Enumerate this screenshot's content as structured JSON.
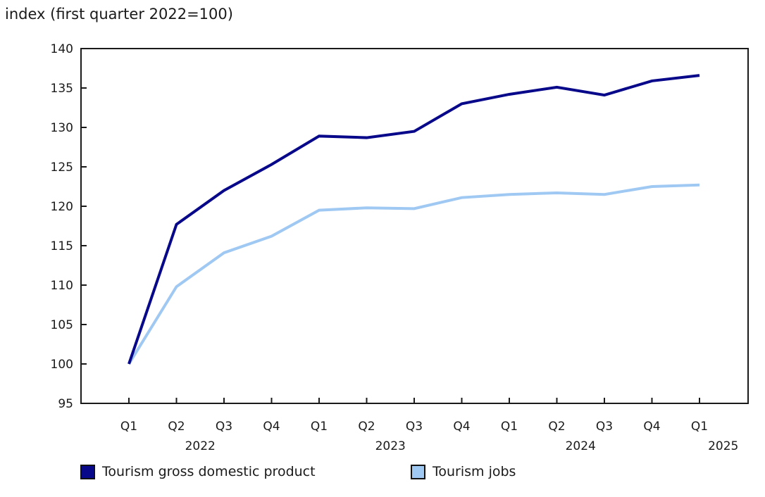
{
  "title": "index (first quarter 2022=100)",
  "chart_data": {
    "type": "line",
    "title": "index (first quarter 2022=100)",
    "categories": [
      "2022 Q1",
      "2022 Q2",
      "2022 Q3",
      "2022 Q4",
      "2023 Q1",
      "2023 Q2",
      "2023 Q3",
      "2023 Q4",
      "2024 Q1",
      "2024 Q2",
      "2024 Q3",
      "2024 Q4",
      "2025 Q1"
    ],
    "x_tick_labels": [
      "Q1",
      "Q2",
      "Q3",
      "Q4",
      "Q1",
      "Q2",
      "Q3",
      "Q4",
      "Q1",
      "Q2",
      "Q3",
      "Q4",
      "Q1"
    ],
    "x_year_labels": [
      {
        "label": "2022",
        "pos": 1.5
      },
      {
        "label": "2023",
        "pos": 5.5
      },
      {
        "label": "2024",
        "pos": 9.5
      },
      {
        "label": "2025",
        "pos": 12.5
      }
    ],
    "ylim": [
      95,
      140
    ],
    "yticks": [
      95,
      100,
      105,
      110,
      115,
      120,
      125,
      130,
      135,
      140
    ],
    "grid": false,
    "legend_position": "bottom",
    "axis_color": "#1a1a1a",
    "text_color": "#1a1a1a",
    "series": [
      {
        "name": "Tourism gross domestic product",
        "color": "#08088a",
        "values": [
          100,
          117.7,
          122.0,
          125.3,
          128.9,
          128.7,
          129.5,
          133.0,
          134.2,
          135.1,
          134.1,
          135.9,
          136.6
        ]
      },
      {
        "name": "Tourism jobs",
        "color": "#9fc8f3",
        "values": [
          100,
          109.8,
          114.1,
          116.2,
          119.5,
          119.8,
          119.7,
          121.1,
          121.5,
          121.7,
          121.5,
          122.5,
          122.7
        ]
      }
    ]
  }
}
